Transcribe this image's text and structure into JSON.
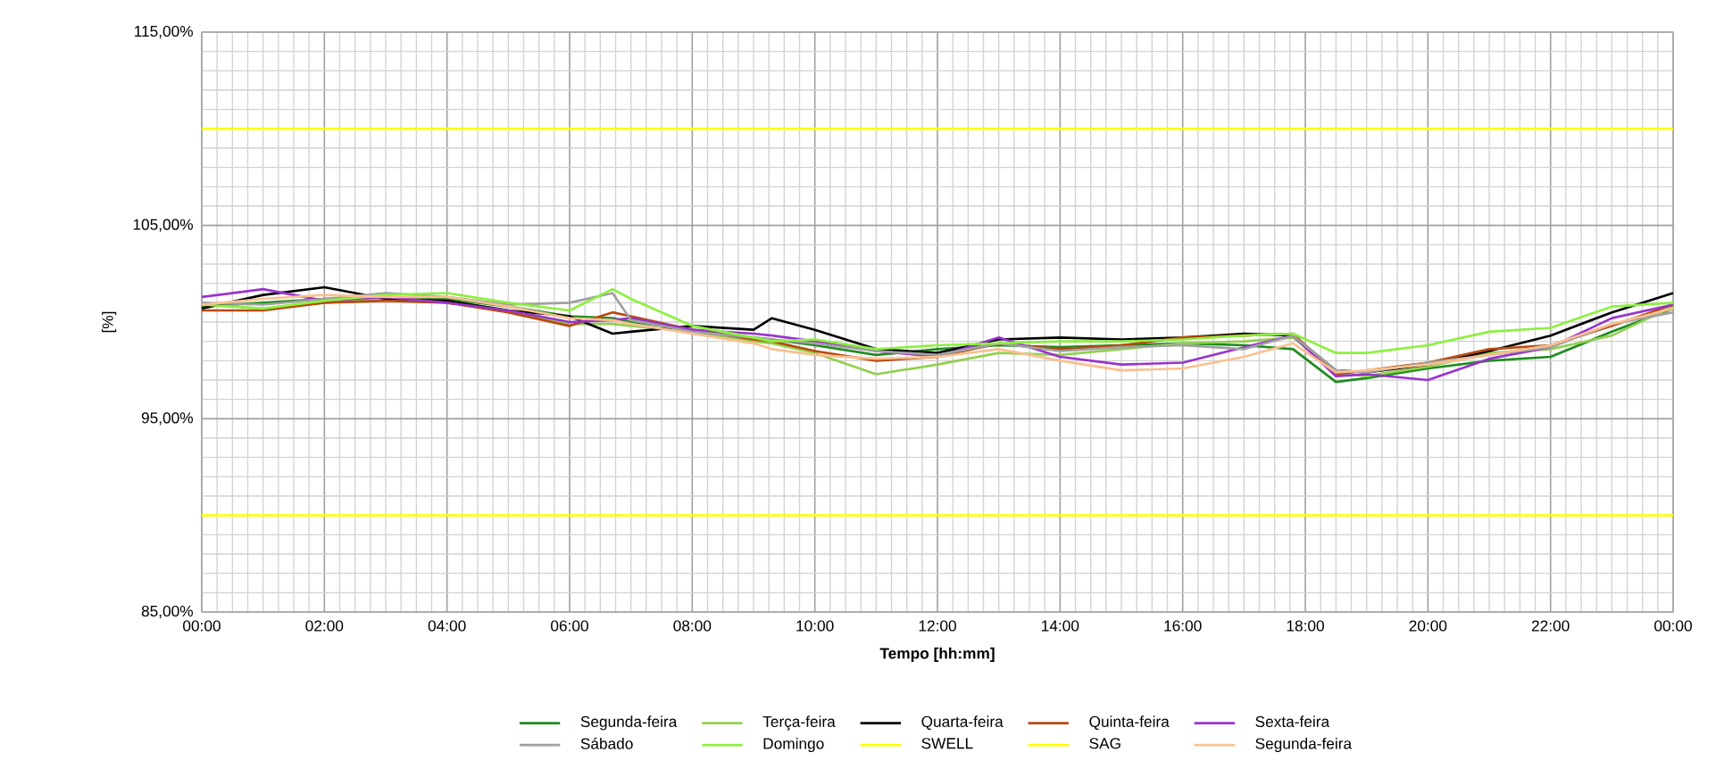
{
  "chart_data": {
    "type": "line",
    "xlabel": "Tempo [hh:mm]",
    "ylabel": "[%]",
    "x": [
      0,
      1,
      2,
      3,
      4,
      5,
      6,
      6.7,
      7,
      8,
      9,
      9.3,
      10,
      11,
      12,
      13,
      14,
      15,
      16,
      17,
      17.8,
      18.5,
      19,
      20,
      21,
      22,
      23,
      24
    ],
    "xlim": [
      0,
      24
    ],
    "ylim": [
      85,
      115
    ],
    "xticks": [
      {
        "value": 0,
        "label": "00:00"
      },
      {
        "value": 2,
        "label": "02:00"
      },
      {
        "value": 4,
        "label": "04:00"
      },
      {
        "value": 6,
        "label": "06:00"
      },
      {
        "value": 8,
        "label": "08:00"
      },
      {
        "value": 10,
        "label": "10:00"
      },
      {
        "value": 12,
        "label": "12:00"
      },
      {
        "value": 14,
        "label": "14:00"
      },
      {
        "value": 16,
        "label": "16:00"
      },
      {
        "value": 18,
        "label": "18:00"
      },
      {
        "value": 20,
        "label": "20:00"
      },
      {
        "value": 22,
        "label": "22:00"
      },
      {
        "value": 24,
        "label": "00:00"
      }
    ],
    "yticks": [
      {
        "value": 85,
        "label": "85,00%"
      },
      {
        "value": 95,
        "label": "95,00%"
      },
      {
        "value": 105,
        "label": "105,00%"
      },
      {
        "value": 115,
        "label": "115,00%"
      }
    ],
    "grid": true,
    "legend": "bottom",
    "series": [
      {
        "name": "Segunda-feira",
        "color": "#1e8c1e",
        "values": [
          100.8,
          101.0,
          101.2,
          101.3,
          101.2,
          100.8,
          100.3,
          100.2,
          100.0,
          99.6,
          99.2,
          99.1,
          98.8,
          98.3,
          98.6,
          98.8,
          98.7,
          98.8,
          98.9,
          98.8,
          98.6,
          96.9,
          97.1,
          97.6,
          98.0,
          98.2,
          99.5,
          100.7
        ]
      },
      {
        "name": "Terça-feira",
        "color": "#92d050",
        "values": [
          100.9,
          100.7,
          101.0,
          101.2,
          101.1,
          100.6,
          99.9,
          99.9,
          99.8,
          99.5,
          99.0,
          98.9,
          98.4,
          97.3,
          97.8,
          98.4,
          98.3,
          98.6,
          98.9,
          99.0,
          99.2,
          97.4,
          97.2,
          97.7,
          98.4,
          98.6,
          99.3,
          100.8
        ]
      },
      {
        "name": "Quarta-feira",
        "color": "#000000",
        "values": [
          100.7,
          101.4,
          101.8,
          101.2,
          101.1,
          100.6,
          100.3,
          99.4,
          99.5,
          99.8,
          99.6,
          100.2,
          99.6,
          98.6,
          98.4,
          99.1,
          99.2,
          99.1,
          99.2,
          99.4,
          99.3,
          97.5,
          97.4,
          97.8,
          98.5,
          99.3,
          100.5,
          101.5
        ]
      },
      {
        "name": "Quinta-feira",
        "color": "#b8490f",
        "values": [
          100.6,
          100.6,
          101.0,
          101.1,
          101.0,
          100.5,
          99.8,
          100.5,
          100.3,
          99.6,
          99.1,
          99.0,
          98.5,
          98.0,
          98.2,
          98.9,
          98.6,
          98.8,
          99.2,
          99.3,
          99.4,
          97.3,
          97.5,
          97.9,
          98.6,
          98.8,
          99.8,
          100.9
        ]
      },
      {
        "name": "Sexta-feira",
        "color": "#9933cc",
        "values": [
          101.3,
          101.7,
          101.1,
          101.3,
          101.0,
          100.6,
          100.0,
          100.1,
          100.2,
          99.6,
          99.4,
          99.3,
          99.0,
          98.5,
          98.2,
          99.2,
          98.2,
          97.8,
          97.9,
          98.7,
          99.3,
          97.2,
          97.3,
          97.0,
          98.1,
          98.7,
          100.2,
          100.9
        ]
      },
      {
        "name": "Sábado",
        "color": "#a0a0a0",
        "values": [
          101.0,
          100.9,
          101.2,
          101.5,
          101.3,
          100.9,
          101.0,
          101.5,
          100.1,
          99.5,
          99.2,
          99.1,
          98.9,
          98.5,
          98.3,
          98.9,
          98.5,
          98.7,
          98.8,
          98.6,
          99.3,
          97.5,
          97.4,
          97.9,
          98.3,
          98.7,
          99.9,
          100.5
        ]
      },
      {
        "name": "Domingo",
        "color": "#8cf040",
        "values": [
          100.9,
          100.7,
          101.1,
          101.4,
          101.5,
          101.0,
          100.6,
          101.7,
          101.2,
          99.8,
          99.2,
          99.0,
          99.1,
          98.6,
          98.8,
          98.9,
          99.0,
          99.0,
          99.1,
          99.3,
          99.4,
          98.4,
          98.4,
          98.8,
          99.5,
          99.7,
          100.8,
          101.0
        ]
      },
      {
        "name": "SWELL",
        "color": "#ffff00",
        "values": [
          110,
          110,
          110,
          110,
          110,
          110,
          110,
          110,
          110,
          110,
          110,
          110,
          110,
          110,
          110,
          110,
          110,
          110,
          110,
          110,
          110,
          110,
          110,
          110,
          110,
          110,
          110,
          110
        ]
      },
      {
        "name": "SAG",
        "color": "#ffff00",
        "values": [
          90,
          90,
          90,
          90,
          90,
          90,
          90,
          90,
          90,
          90,
          90,
          90,
          90,
          90,
          90,
          90,
          90,
          90,
          90,
          90,
          90,
          90,
          90,
          90,
          90,
          90,
          90,
          90
        ]
      },
      {
        "name": "Segunda-feira",
        "color": "#fac090",
        "values": [
          100.9,
          101.2,
          101.4,
          101.3,
          101.3,
          100.8,
          100.2,
          100.1,
          99.9,
          99.4,
          98.9,
          98.6,
          98.3,
          98.1,
          98.2,
          98.6,
          98.0,
          97.5,
          97.6,
          98.2,
          98.9,
          97.4,
          97.5,
          97.8,
          98.3,
          98.8,
          99.9,
          100.7
        ]
      }
    ]
  }
}
